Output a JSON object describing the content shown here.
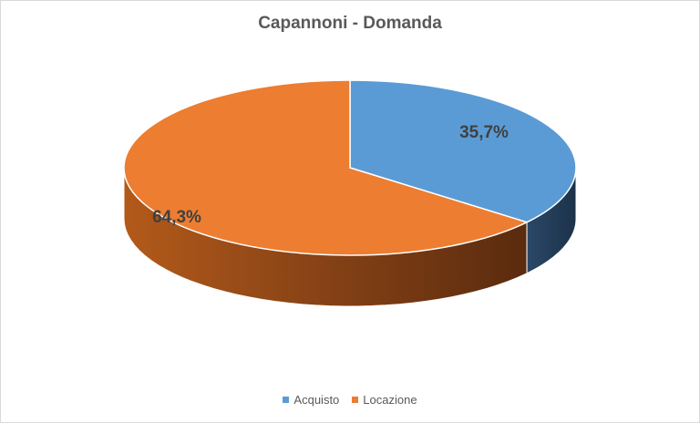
{
  "chart_data": {
    "type": "pie",
    "style": "3d",
    "title": "Capannoni - Domanda",
    "categories": [
      "Acquisto",
      "Locazione"
    ],
    "values": [
      35.7,
      64.3
    ],
    "data_labels": [
      "35,7%",
      "64,3%"
    ],
    "colors": [
      "#5b9bd5",
      "#ed7d31"
    ],
    "legend_position": "bottom"
  }
}
